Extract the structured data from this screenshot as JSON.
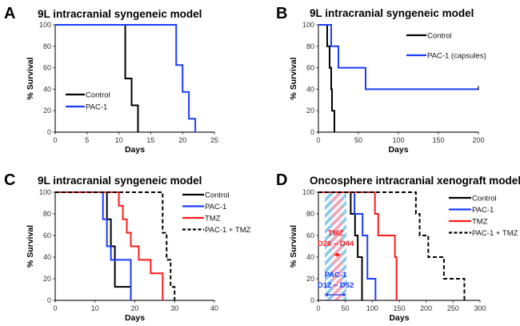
{
  "chart_data": [
    {
      "id": "A",
      "type": "line",
      "step": true,
      "panel_letter": "A",
      "title": "9L intracranial syngeneic model",
      "xlabel": "Days",
      "ylabel": "% Survival",
      "xlim": [
        0,
        25
      ],
      "ylim": [
        0,
        100
      ],
      "xticks": [
        0,
        5,
        10,
        15,
        20,
        25
      ],
      "yticks": [
        0,
        20,
        40,
        60,
        80,
        100
      ],
      "legend": "center-left",
      "series": [
        {
          "name": "Control",
          "color": "#000000",
          "dash": false,
          "steps": [
            [
              0,
              100
            ],
            [
              11,
              50
            ],
            [
              12,
              25
            ],
            [
              13,
              0
            ]
          ]
        },
        {
          "name": "PAC-1",
          "color": "#1a3cff",
          "dash": false,
          "steps": [
            [
              0,
              100
            ],
            [
              19,
              62.5
            ],
            [
              20,
              37.5
            ],
            [
              21,
              12.5
            ],
            [
              22,
              0
            ]
          ]
        }
      ]
    },
    {
      "id": "B",
      "type": "line",
      "step": true,
      "panel_letter": "B",
      "title": "9L intracranial syngeneic model",
      "xlabel": "Days",
      "ylabel": "% Survival",
      "xlim": [
        0,
        200
      ],
      "ylim": [
        0,
        100
      ],
      "xticks": [
        0,
        50,
        100,
        150,
        200
      ],
      "yticks": [
        0,
        20,
        40,
        60,
        80,
        100
      ],
      "legend": "top-right",
      "series": [
        {
          "name": "Control",
          "color": "#000000",
          "dash": false,
          "steps": [
            [
              0,
              100
            ],
            [
              11,
              80
            ],
            [
              14,
              60
            ],
            [
              16,
              40
            ],
            [
              17,
              20
            ],
            [
              20,
              0
            ]
          ]
        },
        {
          "name": "PAC-1 (capsules)",
          "color": "#1a3cff",
          "dash": false,
          "steps": [
            [
              0,
              100
            ],
            [
              16,
              80
            ],
            [
              25,
              60
            ],
            [
              59,
              40
            ]
          ],
          "end": 200,
          "censored_at_end": true
        }
      ]
    },
    {
      "id": "C",
      "type": "line",
      "step": true,
      "panel_letter": "C",
      "title": "9L intracranial syngeneic model",
      "xlabel": "Days",
      "ylabel": "% Survival",
      "xlim": [
        0,
        40
      ],
      "ylim": [
        0,
        100
      ],
      "xticks": [
        0,
        10,
        20,
        30,
        40
      ],
      "yticks": [
        0,
        20,
        40,
        60,
        80,
        100
      ],
      "legend": "top-right",
      "series": [
        {
          "name": "Control",
          "color": "#000000",
          "dash": false,
          "steps": [
            [
              0,
              100
            ],
            [
              13,
              75
            ],
            [
              14,
              50
            ],
            [
              15,
              12.5
            ],
            [
              19,
              0
            ]
          ]
        },
        {
          "name": "PAC-1",
          "color": "#1a3cff",
          "dash": false,
          "steps": [
            [
              0,
              100
            ],
            [
              12,
              75
            ],
            [
              13,
              50
            ],
            [
              14,
              37.5
            ],
            [
              19,
              0
            ]
          ]
        },
        {
          "name": "TMZ",
          "color": "#ff1a1a",
          "dash": false,
          "steps": [
            [
              0,
              100
            ],
            [
              16,
              87.5
            ],
            [
              17,
              75
            ],
            [
              18,
              62.5
            ],
            [
              19,
              50
            ],
            [
              21,
              37.5
            ],
            [
              24,
              25
            ],
            [
              27,
              0
            ]
          ]
        },
        {
          "name": "PAC-1 + TMZ",
          "color": "#000000",
          "dash": true,
          "steps": [
            [
              0,
              100
            ],
            [
              27,
              62.5
            ],
            [
              28,
              37.5
            ],
            [
              29,
              12.5
            ],
            [
              30,
              0
            ]
          ]
        }
      ]
    },
    {
      "id": "D",
      "type": "line",
      "step": true,
      "panel_letter": "D",
      "title": "Oncosphere intracranial xenograft model",
      "xlabel": "Days",
      "ylabel": "% Survival",
      "xlim": [
        0,
        300
      ],
      "ylim": [
        0,
        100
      ],
      "xticks": [
        0,
        50,
        100,
        150,
        200,
        250,
        300
      ],
      "yticks": [
        0,
        20,
        40,
        60,
        80,
        100
      ],
      "legend": "top-right",
      "shaded_regions": [
        {
          "name": "PAC-1",
          "label": "PAC-1",
          "range_label": "D12 – D52",
          "x0": 12,
          "x1": 52,
          "color": "#1a3cff",
          "fill": "#8ccaf0"
        },
        {
          "name": "TMZ",
          "label": "TMZ",
          "range_label": "D26 – D44",
          "x0": 26,
          "x1": 44,
          "color": "#ff1a1a",
          "fill": "#f2a6b8"
        }
      ],
      "series": [
        {
          "name": "Control",
          "color": "#000000",
          "dash": false,
          "steps": [
            [
              0,
              100
            ],
            [
              60,
              80
            ],
            [
              68,
              60
            ],
            [
              73,
              40
            ],
            [
              81,
              0
            ]
          ]
        },
        {
          "name": "PAC-1",
          "color": "#1a3cff",
          "dash": false,
          "steps": [
            [
              0,
              100
            ],
            [
              67,
              80
            ],
            [
              82,
              60
            ],
            [
              91,
              20
            ],
            [
              106,
              0
            ]
          ]
        },
        {
          "name": "TMZ",
          "color": "#ff1a1a",
          "dash": false,
          "steps": [
            [
              0,
              100
            ],
            [
              105,
              80
            ],
            [
              111,
              60
            ],
            [
              142,
              40
            ],
            [
              145,
              0
            ]
          ]
        },
        {
          "name": "PAC-1 + TMZ",
          "color": "#000000",
          "dash": true,
          "steps": [
            [
              0,
              100
            ],
            [
              181,
              80
            ],
            [
              188,
              60
            ],
            [
              204,
              40
            ],
            [
              233,
              20
            ],
            [
              271,
              0
            ]
          ]
        }
      ]
    }
  ]
}
